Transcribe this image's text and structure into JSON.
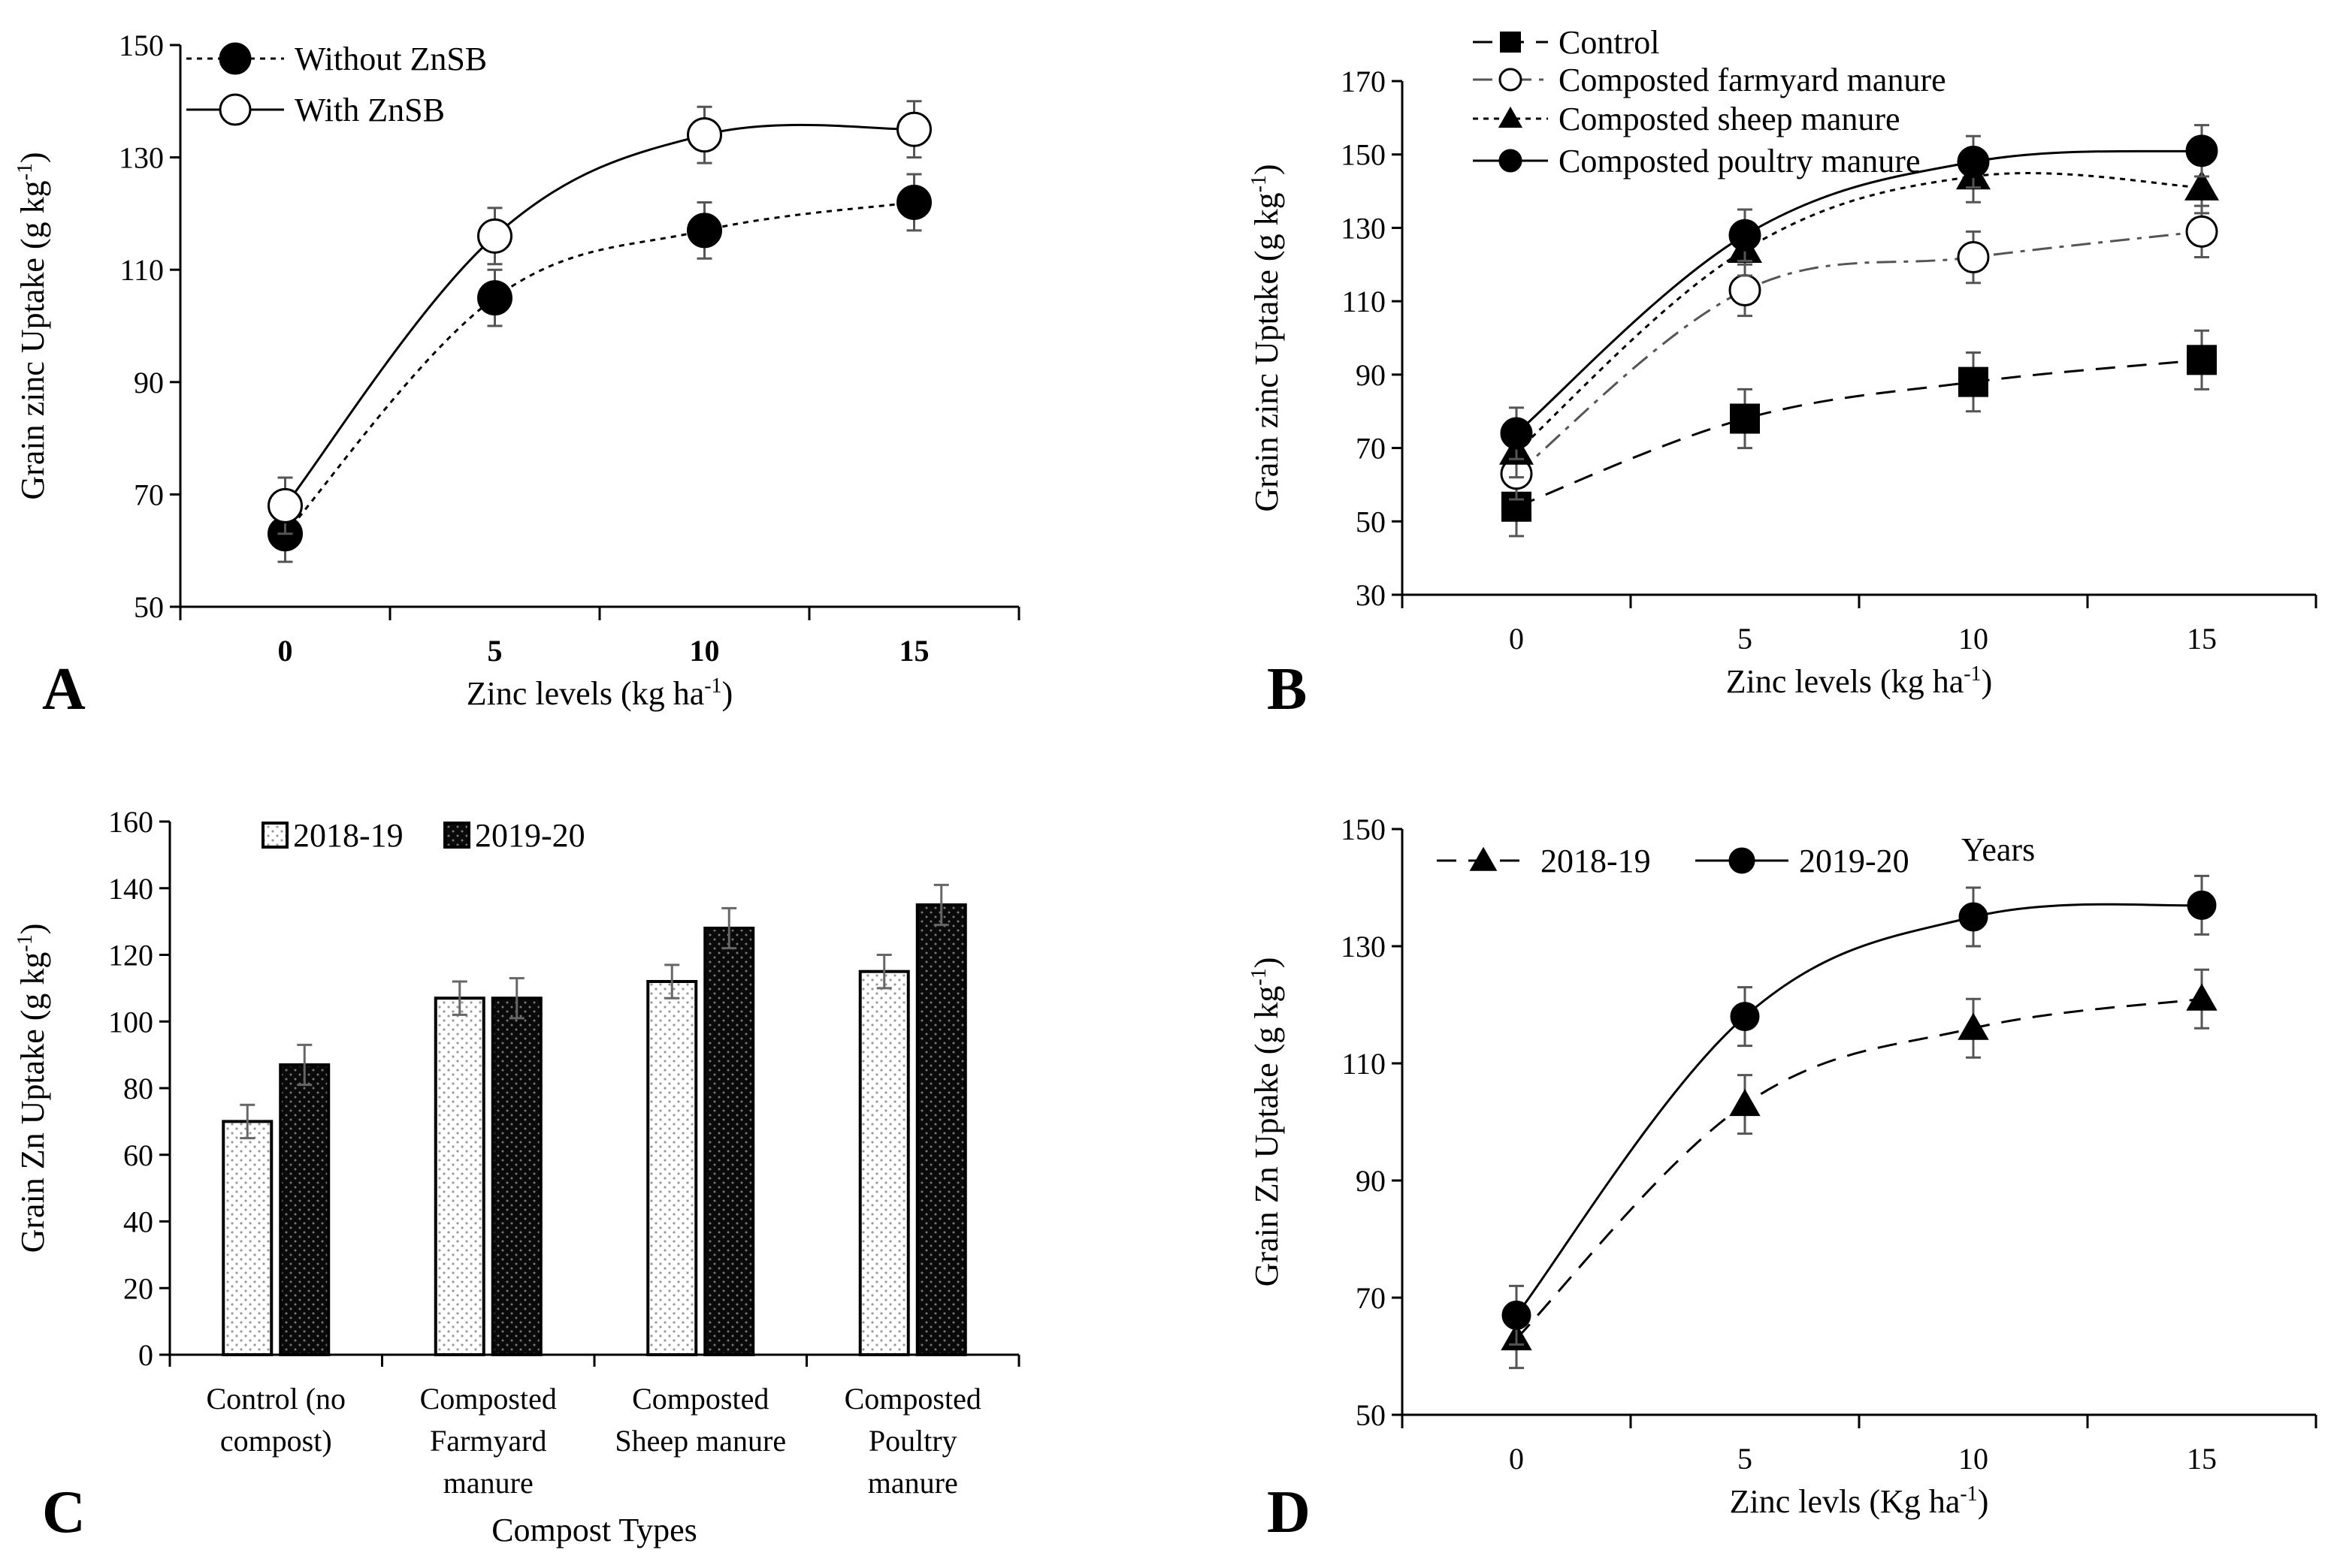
{
  "chart_data": [
    {
      "panel": "A",
      "type": "line",
      "x": [
        0,
        5,
        10,
        15
      ],
      "xlabel": "Zinc levels (kg ha",
      "xlabel_sup": "-1",
      "xlabel_end": ")",
      "ylabel": "Grain zinc Uptake (g kg",
      "ylabel_sup": "-1",
      "ylabel_end": ")",
      "ylim": [
        50,
        150
      ],
      "yticks": [
        50,
        70,
        90,
        110,
        130,
        150
      ],
      "xticks": [
        "0",
        "5",
        "10",
        "15"
      ],
      "legend_position": "top-left",
      "series": [
        {
          "name": "Without ZnSB",
          "values": [
            63,
            105,
            117,
            122
          ],
          "errors": [
            5,
            5,
            5,
            5
          ],
          "marker": "filled-circle",
          "line": "dotted"
        },
        {
          "name": "With ZnSB",
          "values": [
            68,
            116,
            134,
            135
          ],
          "errors": [
            5,
            5,
            5,
            5
          ],
          "marker": "open-circle",
          "line": "solid"
        }
      ]
    },
    {
      "panel": "B",
      "type": "line",
      "x": [
        0,
        5,
        10,
        15
      ],
      "xlabel": "Zinc levels (kg ha",
      "xlabel_sup": "-1",
      "xlabel_end": ")",
      "ylabel": "Grain zinc Uptake (g kg",
      "ylabel_sup": "-1",
      "ylabel_end": ")",
      "ylim": [
        30,
        170
      ],
      "yticks": [
        30,
        50,
        70,
        90,
        110,
        130,
        150,
        170
      ],
      "xticks": [
        "0",
        "5",
        "10",
        "15"
      ],
      "legend_position": "top-left",
      "series": [
        {
          "name": "Control",
          "values": [
            54,
            78,
            88,
            94
          ],
          "errors": [
            8,
            8,
            8,
            8
          ],
          "marker": "filled-square",
          "line": "dashed"
        },
        {
          "name": "Composted farmyard manure",
          "values": [
            63,
            113,
            122,
            129
          ],
          "errors": [
            7,
            7,
            7,
            7
          ],
          "marker": "open-circle",
          "line": "dashdot"
        },
        {
          "name": "Composted sheep manure",
          "values": [
            69,
            124,
            144,
            141
          ],
          "errors": [
            7,
            7,
            7,
            7
          ],
          "marker": "filled-triangle",
          "line": "dotted"
        },
        {
          "name": "Composted poultry manure",
          "values": [
            74,
            128,
            148,
            151
          ],
          "errors": [
            7,
            7,
            7,
            7
          ],
          "marker": "filled-circle",
          "line": "solid"
        }
      ]
    },
    {
      "panel": "C",
      "type": "bar",
      "categories": [
        [
          "Control (no",
          "compost)"
        ],
        [
          "Composted",
          "Farmyard",
          "manure"
        ],
        [
          "Composted",
          "Sheep manure"
        ],
        [
          "Composted",
          "Poultry",
          "manure"
        ]
      ],
      "xlabel": "Compost Types",
      "ylabel": "Grain Zn Uptake (g kg",
      "ylabel_sup": "-1",
      "ylabel_end": ")",
      "ylim": [
        0,
        160
      ],
      "yticks": [
        0,
        20,
        40,
        60,
        80,
        100,
        120,
        140,
        160
      ],
      "legend_position": "top",
      "series": [
        {
          "name": "2018-19",
          "values": [
            70,
            107,
            112,
            115
          ],
          "errors": [
            5,
            5,
            5,
            5
          ],
          "fill": "light-dotted"
        },
        {
          "name": "2019-20",
          "values": [
            87,
            107,
            128,
            135
          ],
          "errors": [
            6,
            6,
            6,
            6
          ],
          "fill": "dark-dotted"
        }
      ]
    },
    {
      "panel": "D",
      "type": "line",
      "x": [
        0,
        5,
        10,
        15
      ],
      "xlabel": "Zinc levls (Kg ha",
      "xlabel_sup": "-1",
      "xlabel_end": ")",
      "ylabel": "Grain Zn Uptake (g kg",
      "ylabel_sup": "-1",
      "ylabel_end": ")",
      "ylim": [
        50,
        150
      ],
      "yticks": [
        50,
        70,
        90,
        110,
        130,
        150
      ],
      "xticks": [
        "0",
        "5",
        "10",
        "15"
      ],
      "legend_position": "top-left",
      "legend_title": "Years",
      "series": [
        {
          "name": "2018-19",
          "values": [
            63,
            103,
            116,
            121
          ],
          "errors": [
            5,
            5,
            5,
            5
          ],
          "marker": "filled-triangle",
          "line": "dashed"
        },
        {
          "name": "2019-20",
          "values": [
            67,
            118,
            135,
            137
          ],
          "errors": [
            5,
            5,
            5,
            5
          ],
          "marker": "filled-circle",
          "line": "solid"
        }
      ]
    }
  ]
}
